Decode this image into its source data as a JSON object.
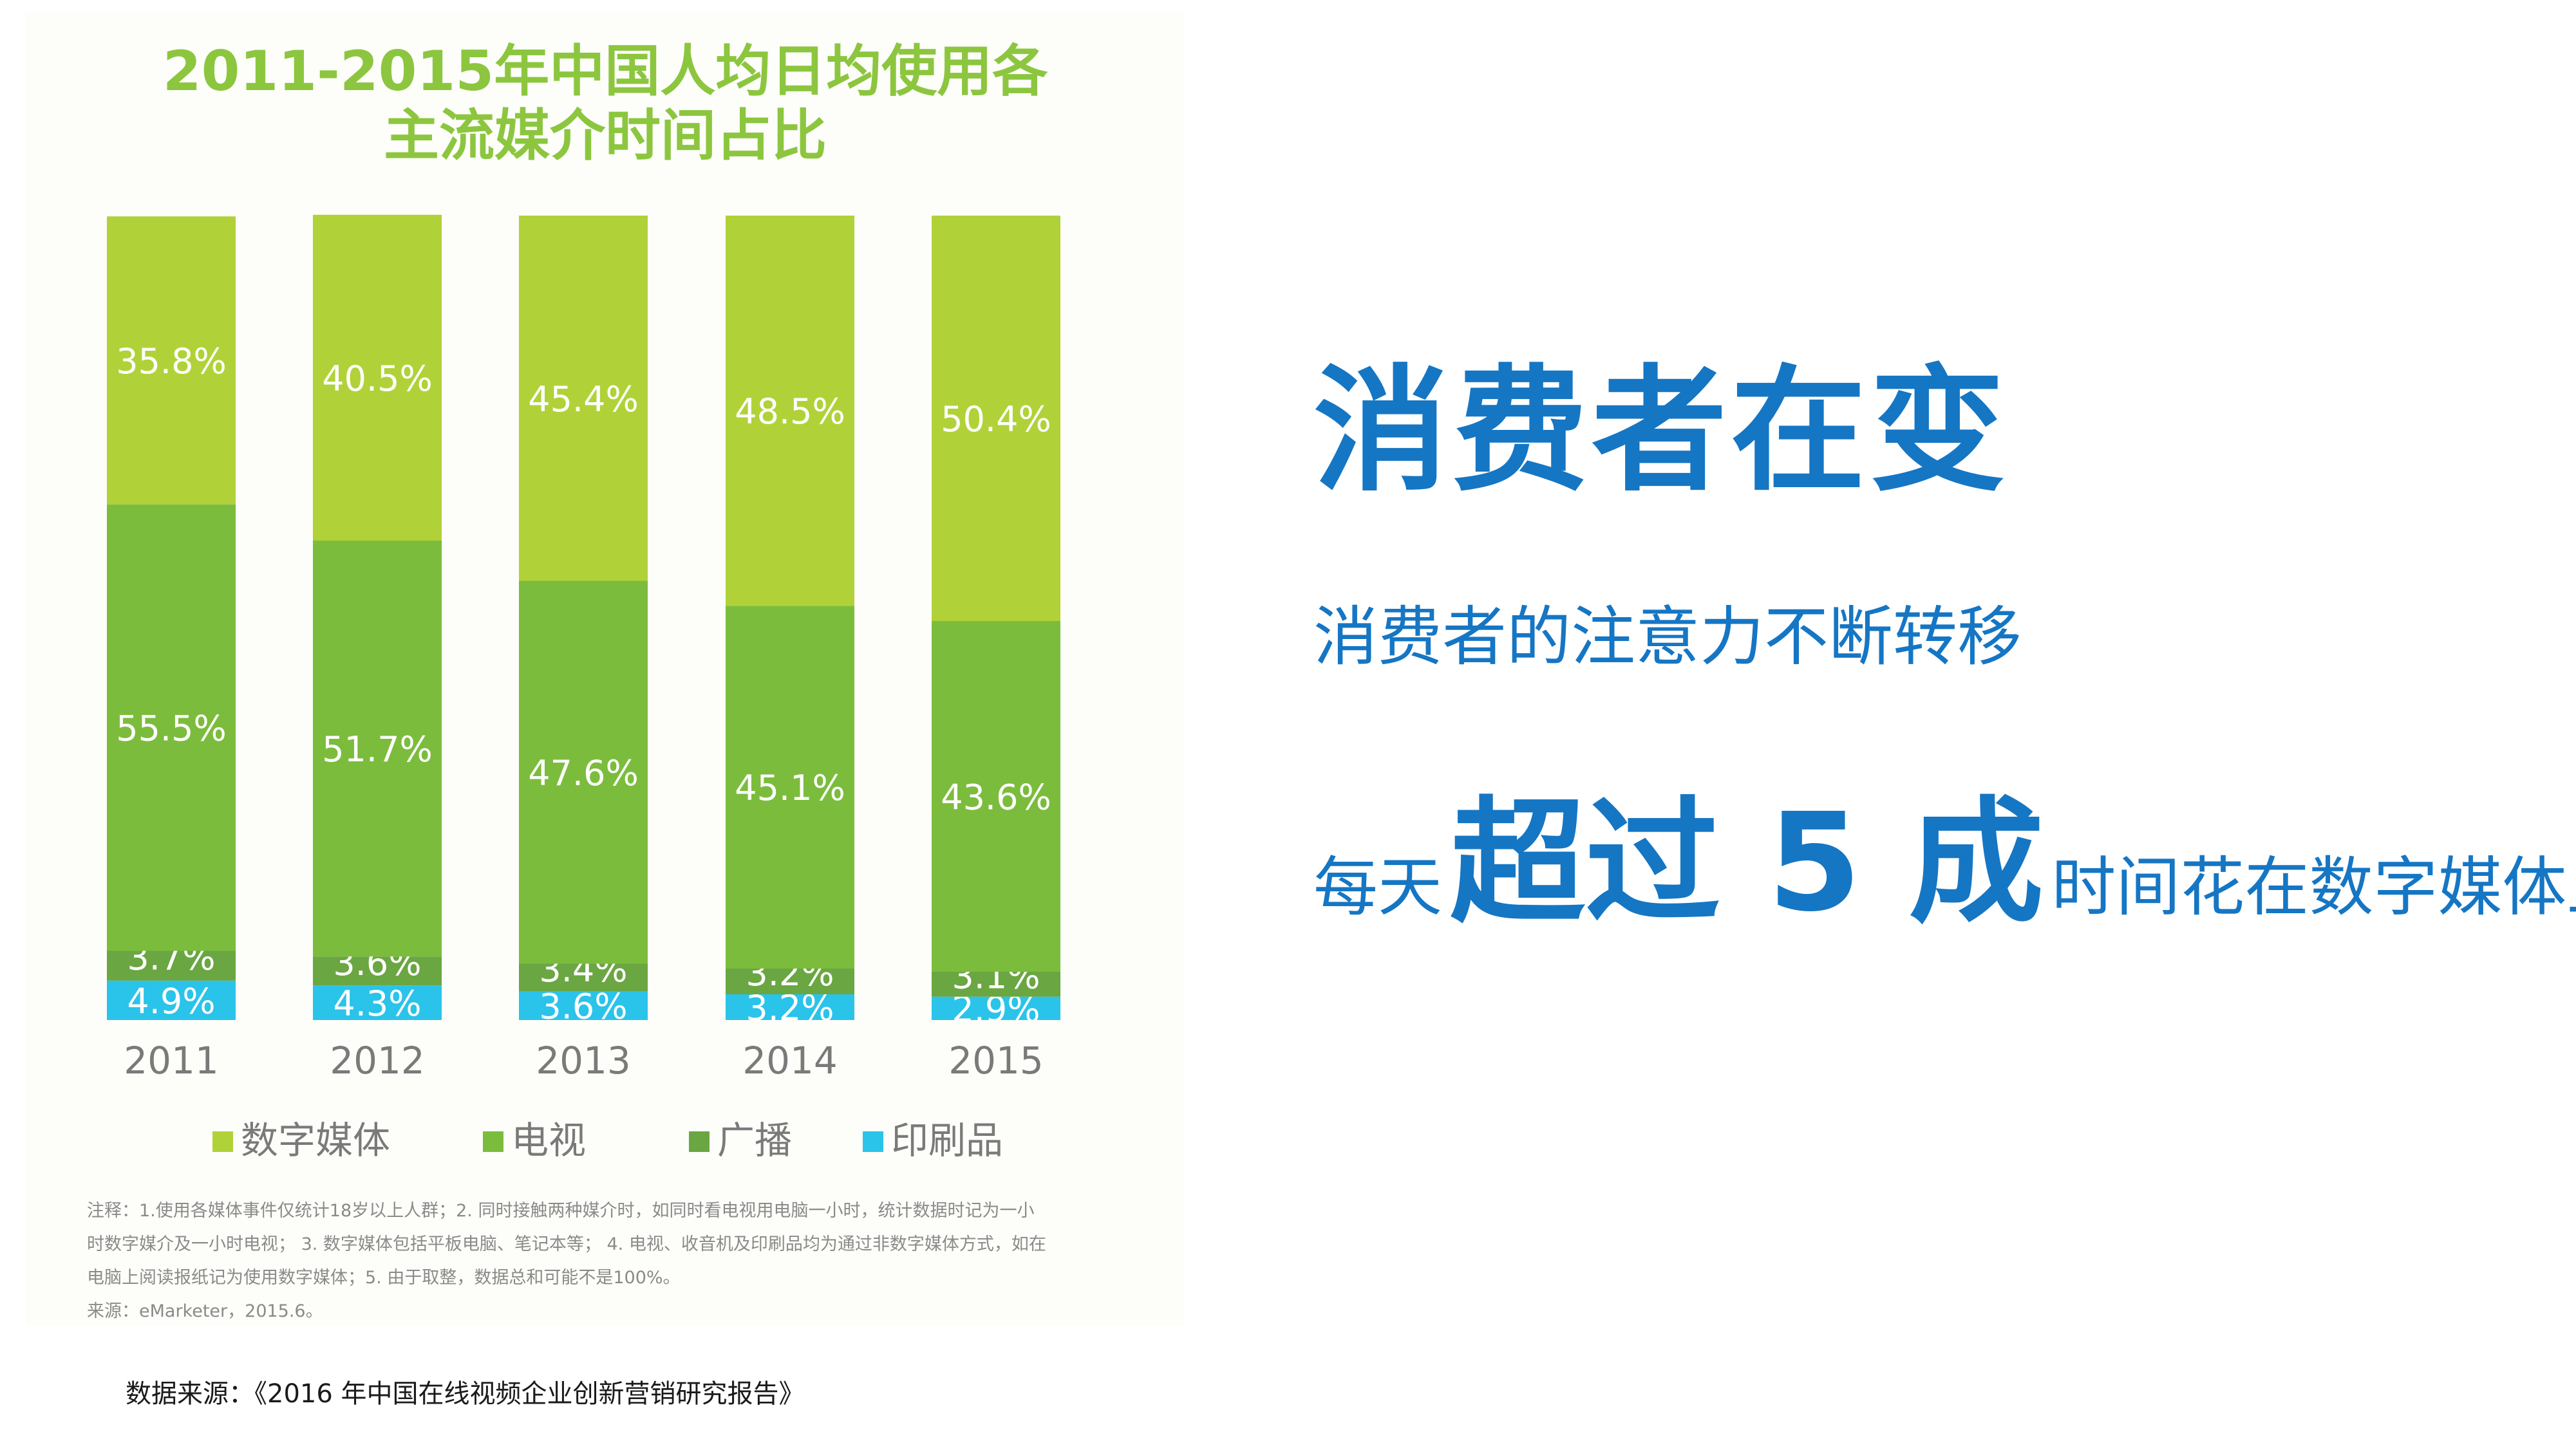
{
  "chart_data": {
    "type": "bar",
    "stacked": true,
    "title_lines": [
      "2011-2015年中国人均日均使用各",
      "主流媒介时间占比"
    ],
    "categories": [
      "2011",
      "2012",
      "2013",
      "2014",
      "2015"
    ],
    "series": [
      {
        "name": "印刷品",
        "color": "#2ac3ea",
        "values": [
          4.9,
          4.3,
          3.6,
          3.2,
          2.9
        ],
        "labels": [
          "4.9%",
          "4.3%",
          "3.6%",
          "3.2%",
          "2.9%"
        ]
      },
      {
        "name": "广播",
        "color": "#6aa642",
        "values": [
          3.7,
          3.6,
          3.4,
          3.2,
          3.1
        ],
        "labels": [
          "3.7%",
          "3.6%",
          "3.4%",
          "3.2%",
          "3.1%"
        ]
      },
      {
        "name": "电视",
        "color": "#7cbc3c",
        "values": [
          55.5,
          51.7,
          47.6,
          45.1,
          43.6
        ],
        "labels": [
          "55.5%",
          "51.7%",
          "47.6%",
          "45.1%",
          "43.6%"
        ]
      },
      {
        "name": "数字媒体",
        "color": "#b0d238",
        "values": [
          35.8,
          40.5,
          45.4,
          48.5,
          50.4
        ],
        "labels": [
          "35.8%",
          "40.5%",
          "45.4%",
          "48.5%",
          "50.4%"
        ]
      }
    ],
    "legend_order": [
      "数字媒体",
      "电视",
      "广播",
      "印刷品"
    ],
    "legend_colors": [
      "#b0d238",
      "#7cbc3c",
      "#6aa642",
      "#2ac3ea"
    ],
    "legend_position": "bottom",
    "ylim": [
      0,
      100
    ],
    "grid": false
  },
  "notes": [
    "注释：1.使用各媒体事件仅统计18岁以上人群；2. 同时接触两种媒介时，如同时看电视用电脑一小时，统计数据时记为一小",
    "时数字媒介及一小时电视； 3. 数字媒体包括平板电脑、笔记本等； 4. 电视、收音机及印刷品均为通过非数字媒体方式，如在",
    "电脑上阅读报纸记为使用数字媒体；5. 由于取整，数据总和可能不是100%。",
    "来源：eMarketer，2015.6。"
  ],
  "source": "数据来源：《2016 年中国在线视频企业创新营销研究报告》",
  "headline": "消费者在变",
  "subline": "消费者的注意力不断转移",
  "keyline": {
    "prefix": "每天",
    "emphasis": "超过 5 成",
    "suffix": "时间花在数字媒体上"
  },
  "colors": {
    "accent": "#1576c4",
    "title_green": "#8cc63f"
  }
}
